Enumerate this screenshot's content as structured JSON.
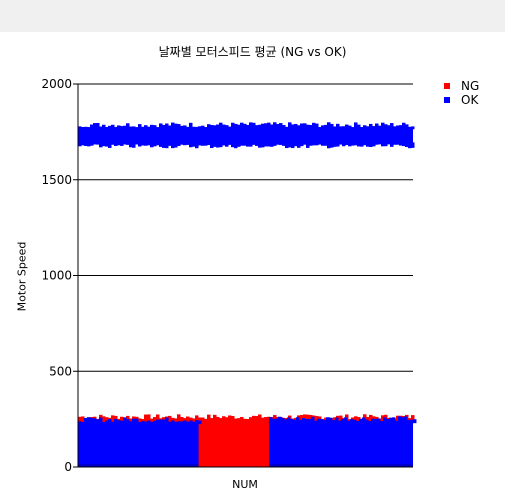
{
  "chart_data": {
    "type": "scatter",
    "title": "날짜별 모터스피드 평균 (NG vs OK)",
    "xlabel": "NUM",
    "ylabel": "Motor Speed",
    "ylim": [
      0,
      2000
    ],
    "yticks": [
      "0",
      "500",
      "1000",
      "1500",
      "2000"
    ],
    "grid": "horizontal",
    "legend_position": "top-right",
    "series": [
      {
        "name": "NG",
        "color": "#ff0000",
        "description_ranges": [
          {
            "x_from": 0.0,
            "x_to": 1.0,
            "y_min": 5,
            "y_max": 265
          }
        ]
      },
      {
        "name": "OK",
        "color": "#0000ff",
        "description_ranges": [
          {
            "x_from": 0.0,
            "x_to": 1.0,
            "y_min": 1690,
            "y_max": 1790
          },
          {
            "x_from": 0.0,
            "x_to": 0.36,
            "y_min": 5,
            "y_max": 250
          },
          {
            "x_from": 0.57,
            "x_to": 1.0,
            "y_min": 5,
            "y_max": 255
          }
        ]
      }
    ]
  }
}
